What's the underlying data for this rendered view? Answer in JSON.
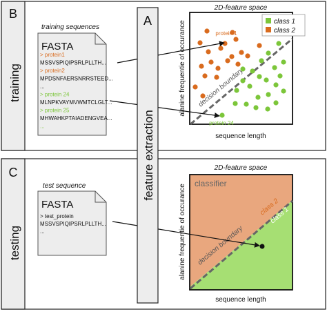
{
  "panel_top": {
    "letter": "B",
    "side_label": "training",
    "caption": "training sequences",
    "file_title": "FASTA",
    "lines": [
      {
        "text": "> protein1",
        "color": "#d96b1e"
      },
      {
        "text": "MSSVSPIQIPSRLPLLTH...",
        "color": "#111111"
      },
      {
        "text": "> protein2",
        "color": "#d96b1e"
      },
      {
        "text": "MPDSNFAERSNRRSTEED...",
        "color": "#111111"
      },
      {
        "text": "...",
        "color": "#111111"
      },
      {
        "text": "> protein 24",
        "color": "#7cc63a"
      },
      {
        "text": "MLNPKVAYMVWMTCLGLT...",
        "color": "#111111"
      },
      {
        "text": "> protein 25",
        "color": "#7cc63a"
      },
      {
        "text": "MHWAHKPTAIADENGVEA...",
        "color": "#111111"
      },
      {
        "text": "...",
        "color": "#7cc63a"
      }
    ],
    "plot_title": "2D-feature space",
    "xlabel": "sequence length",
    "ylabel": "alanine frequentie of occurance",
    "boundary_label": "decision boundary",
    "point_label_1": "protein 1",
    "point_label_24": "protein 24",
    "legend": [
      {
        "name": "class 1",
        "color": "#7cc63a"
      },
      {
        "name": "class 2",
        "color": "#d96b1e"
      }
    ]
  },
  "middle": {
    "letter": "A",
    "label": "feature extraction"
  },
  "panel_bottom": {
    "letter": "C",
    "side_label": "testing",
    "caption": "test sequence",
    "file_title": "FASTA",
    "lines": [
      {
        "text": "> test_protein",
        "color": "#111111"
      },
      {
        "text": "MSSVSPIQIPSRLPLLTH...",
        "color": "#111111"
      },
      {
        "text": "...",
        "color": "#111111"
      }
    ],
    "plot_title": "2D-feature space",
    "xlabel": "sequence length",
    "ylabel": "alanine frequentie of occurance",
    "classifier_label": "classifier",
    "boundary_label": "decision boundary",
    "class2_label": "class 2",
    "class1_label": "class 1"
  },
  "colors": {
    "class1": "#7cc63a",
    "class2": "#d96b1e",
    "region_class2": "#e9a77e",
    "region_class1": "#a6df73",
    "boundary": "#666666",
    "panel_bg": "#ededed"
  }
}
